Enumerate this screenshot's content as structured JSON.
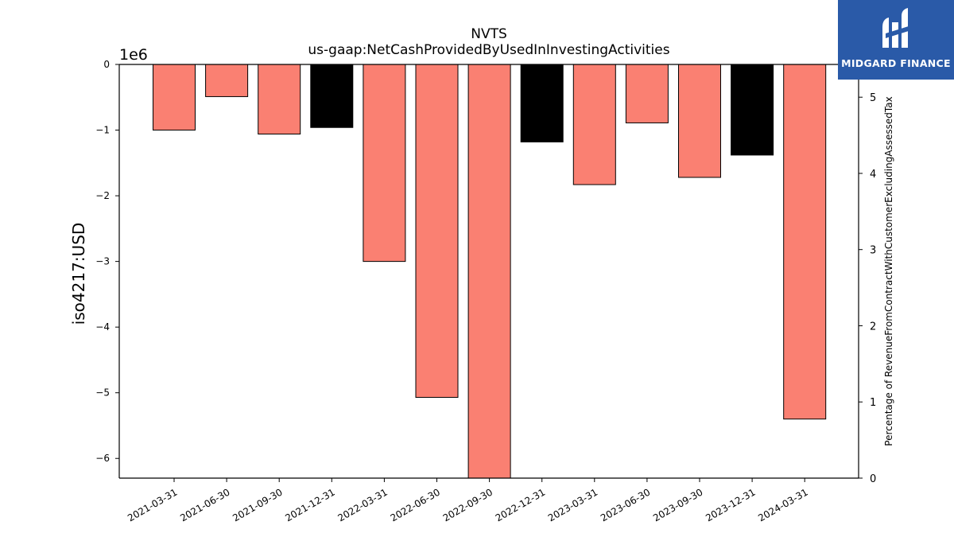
{
  "logo": {
    "text": "MIDGARD FINANCE",
    "background": "#2a5aa8"
  },
  "chart_data": {
    "type": "bar",
    "title": "NVTS",
    "subtitle": "us-gaap:NetCashProvidedByUsedInInvestingActivities",
    "ylabel": "iso4217:USD",
    "y_offset_label": "1e6",
    "y2label": "Percentage of RevenueFromContractWithCustomerExcludingAssessedTax",
    "categories": [
      "2021-03-31",
      "2021-06-30",
      "2021-09-30",
      "2021-12-31",
      "2022-03-31",
      "2022-06-30",
      "2022-09-30",
      "2022-12-31",
      "2023-03-31",
      "2023-06-30",
      "2023-09-30",
      "2023-12-31",
      "2024-03-31"
    ],
    "values": [
      -1.0,
      -0.49,
      -1.06,
      -0.96,
      -3.0,
      -5.07,
      -6.3,
      -1.18,
      -1.83,
      -0.89,
      -1.72,
      -1.38,
      -5.4
    ],
    "colors": [
      "#fa8072",
      "#fa8072",
      "#fa8072",
      "#000000",
      "#fa8072",
      "#fa8072",
      "#fa8072",
      "#000000",
      "#fa8072",
      "#fa8072",
      "#fa8072",
      "#000000",
      "#fa8072"
    ],
    "ylim": [
      -6.3,
      0
    ],
    "yticks": [
      0,
      -1,
      -2,
      -3,
      -4,
      -5,
      -6
    ],
    "ytick_labels": [
      "0",
      "−1",
      "−2",
      "−3",
      "−4",
      "−5",
      "−6"
    ],
    "y2lim": [
      0,
      5.43
    ],
    "y2ticks": [
      0,
      1,
      2,
      3,
      4,
      5
    ],
    "grid": false,
    "legend": "none"
  }
}
